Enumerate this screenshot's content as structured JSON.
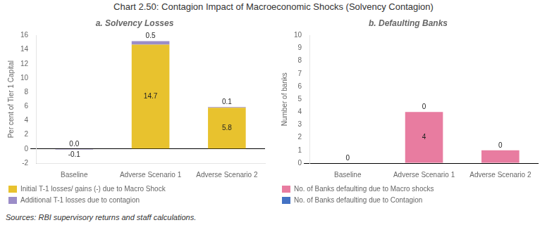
{
  "title": "Chart 2.50: Contagion Impact of Macroeconomic Shocks (Solvency Contagion)",
  "source": "Sources: RBI supervisory returns and staff calculations.",
  "chart_data": [
    {
      "type": "bar",
      "title": "a. Solvency Losses",
      "categories": [
        "Baseline",
        "Adverse Scenario 1",
        "Adverse Scenario 2"
      ],
      "ylabel": "Per cent of Tier 1 Capital",
      "ylim": [
        -2,
        16
      ],
      "yticks": [
        -2,
        0,
        2,
        4,
        6,
        8,
        10,
        12,
        14,
        16
      ],
      "stacked": true,
      "grid": false,
      "legend": "bottom",
      "data_labels": true,
      "series": [
        {
          "name": "Initial T-1 losses/ gains (-) due to Macro Shock",
          "color": "#E8C22E",
          "values": [
            0.0,
            14.7,
            5.8
          ],
          "value_labels": [
            "0.0",
            "14.7",
            "5.8"
          ]
        },
        {
          "name": "Additional T-1 losses due to contagion",
          "color": "#9B8DC8",
          "values": [
            -0.1,
            0.5,
            0.1
          ],
          "value_labels": [
            "-0.1",
            "0.5",
            "0.1"
          ]
        }
      ]
    },
    {
      "type": "bar",
      "title": "b. Defaulting Banks",
      "categories": [
        "Baseline",
        "Adverse Scenario 1",
        "Adverse Scenario 2"
      ],
      "ylabel": "Number of banks",
      "ylim": [
        0,
        10
      ],
      "yticks": [
        0,
        1,
        2,
        3,
        4,
        5,
        6,
        7,
        8,
        9,
        10
      ],
      "stacked": true,
      "grid": false,
      "legend": "bottom",
      "data_labels": true,
      "series": [
        {
          "name": "No. of Banks defaulting due to Macro shocks",
          "color": "#E87CA0",
          "values": [
            0,
            4,
            1
          ],
          "value_labels": [
            "0",
            "4",
            null
          ]
        },
        {
          "name": "No. of Banks defaulting due to Contagion",
          "color": "#4472C4",
          "values": [
            0,
            0,
            0
          ],
          "value_labels": [
            null,
            "0",
            "0"
          ]
        }
      ]
    }
  ]
}
